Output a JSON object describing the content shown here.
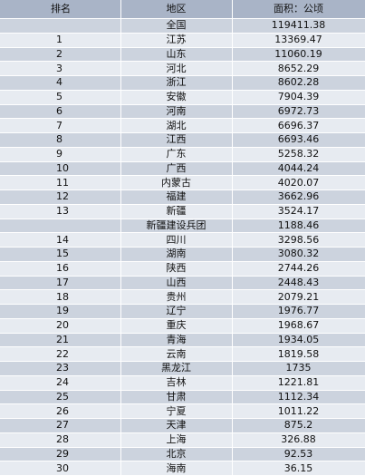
{
  "table": {
    "headers": {
      "rank": "排名",
      "region": "地区",
      "area": "面积：公顷"
    },
    "rows": [
      {
        "rank": "",
        "region": "全国",
        "area": "119411.38"
      },
      {
        "rank": "1",
        "region": "江苏",
        "area": "13369.47"
      },
      {
        "rank": "2",
        "region": "山东",
        "area": "11060.19"
      },
      {
        "rank": "3",
        "region": "河北",
        "area": "8652.29"
      },
      {
        "rank": "4",
        "region": "浙江",
        "area": "8602.28"
      },
      {
        "rank": "5",
        "region": "安徽",
        "area": "7904.39"
      },
      {
        "rank": "6",
        "region": "河南",
        "area": "6972.73"
      },
      {
        "rank": "7",
        "region": "湖北",
        "area": "6696.37"
      },
      {
        "rank": "8",
        "region": "江西",
        "area": "6693.46"
      },
      {
        "rank": "9",
        "region": "广东",
        "area": "5258.32"
      },
      {
        "rank": "10",
        "region": "广西",
        "area": "4044.24"
      },
      {
        "rank": "11",
        "region": "内蒙古",
        "area": "4020.07"
      },
      {
        "rank": "12",
        "region": "福建",
        "area": "3662.96"
      },
      {
        "rank": "13",
        "region": "新疆",
        "area": "3524.17"
      },
      {
        "rank": "",
        "region": "新疆建设兵团",
        "area": "1188.46"
      },
      {
        "rank": "14",
        "region": "四川",
        "area": "3298.56"
      },
      {
        "rank": "15",
        "region": "湖南",
        "area": "3080.32"
      },
      {
        "rank": "16",
        "region": "陕西",
        "area": "2744.26"
      },
      {
        "rank": "17",
        "region": "山西",
        "area": "2448.43"
      },
      {
        "rank": "18",
        "region": "贵州",
        "area": "2079.21"
      },
      {
        "rank": "19",
        "region": "辽宁",
        "area": "1976.77"
      },
      {
        "rank": "20",
        "region": "重庆",
        "area": "1968.67"
      },
      {
        "rank": "21",
        "region": "青海",
        "area": "1934.05"
      },
      {
        "rank": "22",
        "region": "云南",
        "area": "1819.58"
      },
      {
        "rank": "23",
        "region": "黑龙江",
        "area": "1735"
      },
      {
        "rank": "24",
        "region": "吉林",
        "area": "1221.81"
      },
      {
        "rank": "25",
        "region": "甘肃",
        "area": "1112.34"
      },
      {
        "rank": "26",
        "region": "宁夏",
        "area": "1011.22"
      },
      {
        "rank": "27",
        "region": "天津",
        "area": "875.2"
      },
      {
        "rank": "28",
        "region": "上海",
        "area": "326.88"
      },
      {
        "rank": "29",
        "region": "北京",
        "area": "92.53"
      },
      {
        "rank": "30",
        "region": "海南",
        "area": "36.15"
      }
    ]
  }
}
